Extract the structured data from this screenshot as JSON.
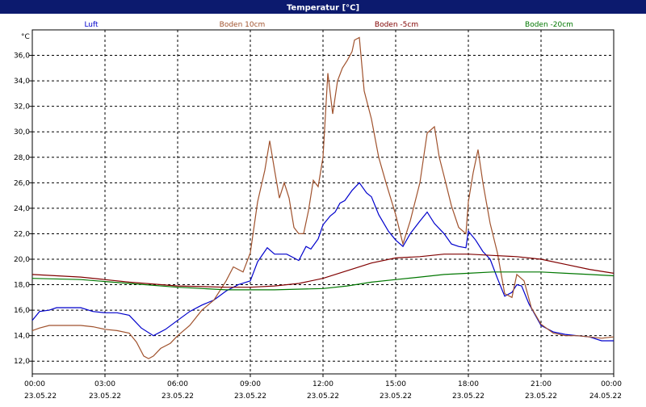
{
  "chart_data": {
    "type": "line",
    "title": "Temperatur [°C]",
    "ylabel": "°C",
    "ylim": [
      11,
      38
    ],
    "yticks": [
      "12,0",
      "14,0",
      "16,0",
      "18,0",
      "20,0",
      "22,0",
      "24,0",
      "26,0",
      "28,0",
      "30,0",
      "32,0",
      "34,0",
      "36,0"
    ],
    "ytick_values": [
      12,
      14,
      16,
      18,
      20,
      22,
      24,
      26,
      28,
      30,
      32,
      34,
      36
    ],
    "xlim": [
      0,
      24
    ],
    "xticks": [
      {
        "h": 0,
        "time": "00:00",
        "date": "23.05.22"
      },
      {
        "h": 3,
        "time": "03:00",
        "date": "23.05.22"
      },
      {
        "h": 6,
        "time": "06:00",
        "date": "23.05.22"
      },
      {
        "h": 9,
        "time": "09:00",
        "date": "23.05.22"
      },
      {
        "h": 12,
        "time": "12:00",
        "date": "23.05.22"
      },
      {
        "h": 15,
        "time": "15:00",
        "date": "23.05.22"
      },
      {
        "h": 18,
        "time": "18:00",
        "date": "23.05.22"
      },
      {
        "h": 21,
        "time": "21:00",
        "date": "23.05.22"
      },
      {
        "h": 24,
        "time": "00:00",
        "date": "24.05.22"
      }
    ],
    "grid": true,
    "legend_position": "top",
    "series": [
      {
        "name": "Luft",
        "color": "#0000cc",
        "points": [
          [
            0,
            15.2
          ],
          [
            0.3,
            15.9
          ],
          [
            0.7,
            16.0
          ],
          [
            1.0,
            16.2
          ],
          [
            1.5,
            16.2
          ],
          [
            2.0,
            16.2
          ],
          [
            2.5,
            15.9
          ],
          [
            3.0,
            15.8
          ],
          [
            3.5,
            15.8
          ],
          [
            4.0,
            15.6
          ],
          [
            4.5,
            14.6
          ],
          [
            5.0,
            14.0
          ],
          [
            5.5,
            14.5
          ],
          [
            6.0,
            15.2
          ],
          [
            6.5,
            15.9
          ],
          [
            7.0,
            16.4
          ],
          [
            7.5,
            16.8
          ],
          [
            8.0,
            17.5
          ],
          [
            8.5,
            18.0
          ],
          [
            9.0,
            18.3
          ],
          [
            9.3,
            19.8
          ],
          [
            9.7,
            20.9
          ],
          [
            10.0,
            20.4
          ],
          [
            10.5,
            20.4
          ],
          [
            10.8,
            20.1
          ],
          [
            11.0,
            19.9
          ],
          [
            11.3,
            21.0
          ],
          [
            11.5,
            20.8
          ],
          [
            11.8,
            21.6
          ],
          [
            12.0,
            22.7
          ],
          [
            12.3,
            23.4
          ],
          [
            12.5,
            23.7
          ],
          [
            12.7,
            24.4
          ],
          [
            12.9,
            24.6
          ],
          [
            13.2,
            25.4
          ],
          [
            13.5,
            26.0
          ],
          [
            13.8,
            25.2
          ],
          [
            14.0,
            24.9
          ],
          [
            14.3,
            23.5
          ],
          [
            14.7,
            22.2
          ],
          [
            15.0,
            21.5
          ],
          [
            15.3,
            21.0
          ],
          [
            15.6,
            22.0
          ],
          [
            16.0,
            23.0
          ],
          [
            16.3,
            23.7
          ],
          [
            16.6,
            22.8
          ],
          [
            17.0,
            22.0
          ],
          [
            17.3,
            21.2
          ],
          [
            17.6,
            21.0
          ],
          [
            17.9,
            20.9
          ],
          [
            18.0,
            22.2
          ],
          [
            18.3,
            21.5
          ],
          [
            18.6,
            20.6
          ],
          [
            18.9,
            20.0
          ],
          [
            19.2,
            18.5
          ],
          [
            19.5,
            17.1
          ],
          [
            19.8,
            17.4
          ],
          [
            20.0,
            18.0
          ],
          [
            20.2,
            17.9
          ],
          [
            20.5,
            16.5
          ],
          [
            21.0,
            14.8
          ],
          [
            21.5,
            14.3
          ],
          [
            22.0,
            14.1
          ],
          [
            22.5,
            14.0
          ],
          [
            23.0,
            13.9
          ],
          [
            23.5,
            13.6
          ],
          [
            24.0,
            13.6
          ]
        ]
      },
      {
        "name": "Boden 10cm",
        "color": "#a0522d",
        "points": [
          [
            0,
            14.4
          ],
          [
            0.3,
            14.6
          ],
          [
            0.7,
            14.8
          ],
          [
            1.0,
            14.8
          ],
          [
            2.0,
            14.8
          ],
          [
            2.5,
            14.7
          ],
          [
            3.0,
            14.5
          ],
          [
            3.5,
            14.4
          ],
          [
            4.0,
            14.2
          ],
          [
            4.3,
            13.5
          ],
          [
            4.6,
            12.4
          ],
          [
            4.8,
            12.2
          ],
          [
            5.0,
            12.4
          ],
          [
            5.3,
            13.0
          ],
          [
            5.7,
            13.4
          ],
          [
            6.0,
            14.0
          ],
          [
            6.5,
            14.8
          ],
          [
            7.0,
            16.0
          ],
          [
            7.5,
            16.8
          ],
          [
            8.0,
            18.3
          ],
          [
            8.3,
            19.4
          ],
          [
            8.7,
            19.0
          ],
          [
            9.0,
            20.5
          ],
          [
            9.3,
            24.5
          ],
          [
            9.6,
            27.0
          ],
          [
            9.8,
            29.3
          ],
          [
            10.0,
            27.0
          ],
          [
            10.2,
            24.8
          ],
          [
            10.4,
            26.0
          ],
          [
            10.6,
            24.8
          ],
          [
            10.8,
            22.5
          ],
          [
            11.0,
            22.0
          ],
          [
            11.2,
            22.0
          ],
          [
            11.4,
            23.8
          ],
          [
            11.6,
            26.2
          ],
          [
            11.8,
            25.7
          ],
          [
            12.0,
            28.0
          ],
          [
            12.2,
            34.6
          ],
          [
            12.4,
            31.4
          ],
          [
            12.6,
            34.0
          ],
          [
            12.8,
            35.0
          ],
          [
            13.0,
            35.6
          ],
          [
            13.2,
            36.3
          ],
          [
            13.3,
            37.2
          ],
          [
            13.5,
            37.4
          ],
          [
            13.7,
            33.2
          ],
          [
            14.0,
            31.0
          ],
          [
            14.3,
            28.0
          ],
          [
            14.6,
            26.0
          ],
          [
            15.0,
            23.5
          ],
          [
            15.3,
            21.2
          ],
          [
            15.6,
            23.0
          ],
          [
            16.0,
            26.0
          ],
          [
            16.3,
            29.9
          ],
          [
            16.6,
            30.4
          ],
          [
            16.8,
            28.0
          ],
          [
            17.0,
            26.5
          ],
          [
            17.3,
            24.2
          ],
          [
            17.6,
            22.5
          ],
          [
            17.9,
            22.0
          ],
          [
            18.0,
            24.5
          ],
          [
            18.2,
            26.8
          ],
          [
            18.4,
            28.6
          ],
          [
            18.6,
            26.0
          ],
          [
            18.9,
            22.8
          ],
          [
            19.2,
            20.5
          ],
          [
            19.5,
            17.3
          ],
          [
            19.8,
            17.0
          ],
          [
            20.0,
            18.8
          ],
          [
            20.3,
            18.3
          ],
          [
            20.6,
            16.2
          ],
          [
            21.0,
            14.9
          ],
          [
            21.5,
            14.2
          ],
          [
            22.0,
            14.0
          ],
          [
            22.5,
            14.0
          ],
          [
            23.0,
            13.9
          ],
          [
            23.5,
            13.8
          ],
          [
            24.0,
            13.9
          ]
        ]
      },
      {
        "name": "Boden -5cm",
        "color": "#800000",
        "points": [
          [
            0,
            18.8
          ],
          [
            2,
            18.6
          ],
          [
            4,
            18.2
          ],
          [
            6,
            17.9
          ],
          [
            8,
            17.8
          ],
          [
            9,
            17.8
          ],
          [
            10,
            17.9
          ],
          [
            11,
            18.1
          ],
          [
            12,
            18.5
          ],
          [
            13,
            19.1
          ],
          [
            14,
            19.7
          ],
          [
            15,
            20.1
          ],
          [
            16,
            20.2
          ],
          [
            17,
            20.4
          ],
          [
            18,
            20.4
          ],
          [
            19,
            20.3
          ],
          [
            20,
            20.2
          ],
          [
            21,
            20.0
          ],
          [
            22,
            19.6
          ],
          [
            23,
            19.2
          ],
          [
            24,
            18.9
          ]
        ]
      },
      {
        "name": "Boden -20cm",
        "color": "#007700",
        "points": [
          [
            0,
            18.5
          ],
          [
            2,
            18.4
          ],
          [
            4,
            18.1
          ],
          [
            6,
            17.8
          ],
          [
            8,
            17.6
          ],
          [
            10,
            17.6
          ],
          [
            12,
            17.7
          ],
          [
            13,
            17.9
          ],
          [
            14,
            18.2
          ],
          [
            15,
            18.4
          ],
          [
            16,
            18.6
          ],
          [
            17,
            18.8
          ],
          [
            18,
            18.9
          ],
          [
            19,
            19.0
          ],
          [
            20,
            19.0
          ],
          [
            21,
            19.0
          ],
          [
            22,
            18.9
          ],
          [
            23,
            18.8
          ],
          [
            24,
            18.7
          ]
        ]
      }
    ]
  }
}
